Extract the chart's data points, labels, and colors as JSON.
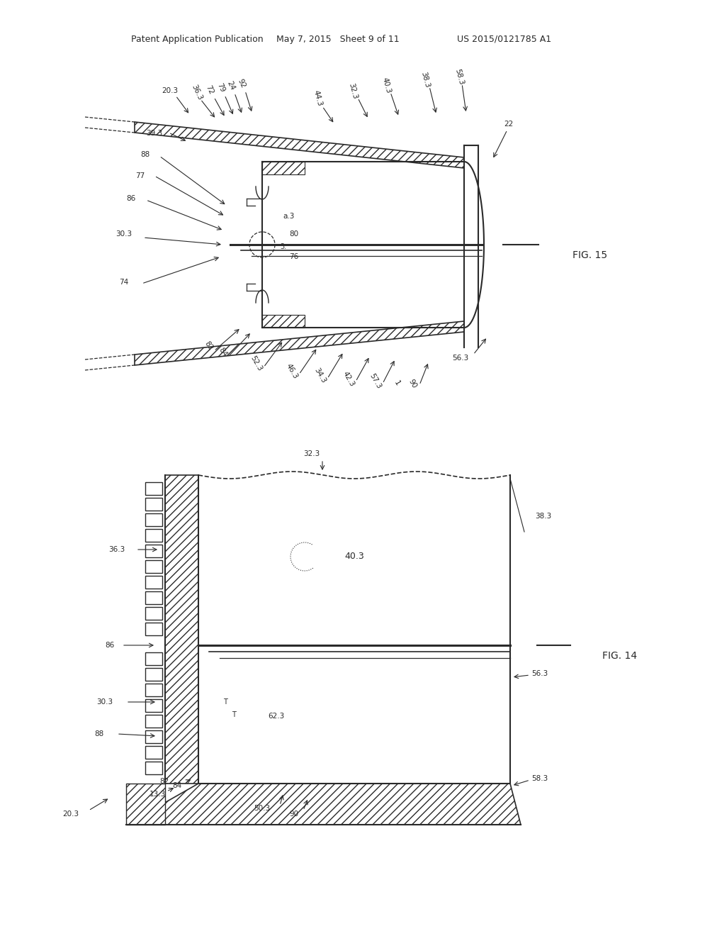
{
  "background_color": "#ffffff",
  "line_color": "#2a2a2a",
  "text_color": "#2a2a2a",
  "header_left": "Patent Application Publication",
  "header_mid": "May 7, 2015   Sheet 9 of 11",
  "header_right": "US 2015/0121785 A1",
  "fig14_label": "FIG. 14",
  "fig15_label": "FIG. 15"
}
